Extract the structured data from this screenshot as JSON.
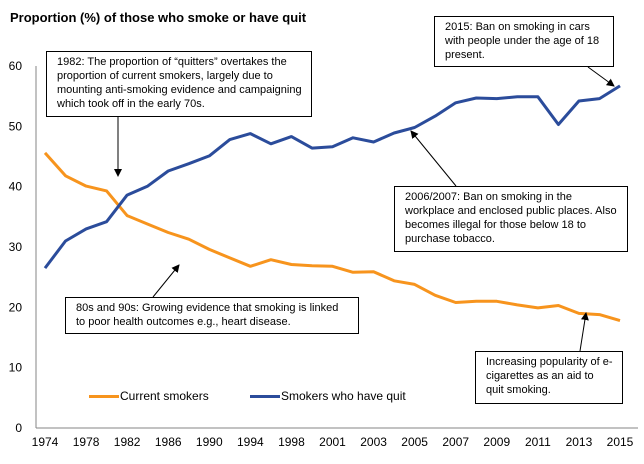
{
  "chart_data": {
    "type": "line",
    "title": "Proportion (%) of those who smoke or have quit",
    "xlabel": "",
    "ylabel": "",
    "ylim": [
      0,
      60
    ],
    "yticks": [
      0,
      10,
      20,
      30,
      40,
      50,
      60
    ],
    "grid": false,
    "legend_position": "bottom-left",
    "x": [
      1974,
      1976,
      1978,
      1980,
      1982,
      1984,
      1986,
      1988,
      1990,
      1992,
      1994,
      1996,
      1998,
      2000,
      2001,
      2002,
      2003,
      2004,
      2005,
      2006,
      2007,
      2008,
      2009,
      2010,
      2011,
      2012,
      2013,
      2014,
      2015
    ],
    "xtick_labels": [
      "1974",
      "",
      "1978",
      "",
      "1982",
      "",
      "1986",
      "",
      "1990",
      "",
      "1994",
      "",
      "1998",
      "",
      "2001",
      "",
      "2003",
      "",
      "2005",
      "",
      "2007",
      "",
      "2009",
      "",
      "2011",
      "",
      "2013",
      "",
      "2015"
    ],
    "series": [
      {
        "name": "Current smokers",
        "color": "#F7941D",
        "values": [
          45.6,
          41.8,
          40.1,
          39.3,
          35.2,
          33.8,
          32.4,
          31.3,
          29.6,
          28.2,
          26.8,
          27.9,
          27.1,
          26.9,
          26.8,
          25.8,
          25.9,
          24.4,
          23.8,
          22.0,
          20.8,
          21.0,
          21.0,
          20.4,
          19.9,
          20.3,
          19.0,
          18.8,
          17.8
        ]
      },
      {
        "name": "Smokers who have quit",
        "color": "#2B4C9B",
        "values": [
          26.5,
          31.0,
          33.0,
          34.2,
          38.6,
          40.1,
          42.6,
          43.8,
          45.1,
          47.8,
          48.8,
          47.1,
          48.3,
          46.4,
          46.6,
          48.1,
          47.4,
          48.9,
          49.8,
          51.7,
          53.9,
          54.7,
          54.6,
          54.9,
          54.9,
          50.3,
          54.2,
          54.6,
          56.7
        ]
      }
    ],
    "annotations": [
      {
        "id": "quitters-1982",
        "text": "1982: The proportion of “quitters” overtakes the proportion of current smokers, largely due to mounting anti-smoking evidence and campaigning which took off in the early 70s.",
        "points_to": {
          "x": 1982,
          "series": "crossover"
        }
      },
      {
        "id": "ban-cars-2015",
        "text": "2015: Ban on smoking in cars with people under the age of 18 present.",
        "points_to": {
          "x": 2015,
          "series": "Smokers who have quit"
        }
      },
      {
        "id": "ban-workplace-2007",
        "text": "2006/2007: Ban on smoking in the workplace and enclosed public places. Also becomes illegal for those below 18 to purchase tobacco.",
        "points_to": {
          "x": 2005,
          "series": "Smokers who have quit"
        }
      },
      {
        "id": "evidence-80s-90s",
        "text": "80s and 90s: Growing evidence that smoking is linked to poor health outcomes e.g., heart disease.",
        "points_to": {
          "x": 1986,
          "series": "Current smokers"
        }
      },
      {
        "id": "ecigarettes",
        "text": "Increasing popularity of e-cigarettes as an aid to quit smoking.",
        "points_to": {
          "x": 2013,
          "series": "Current smokers"
        }
      }
    ]
  }
}
